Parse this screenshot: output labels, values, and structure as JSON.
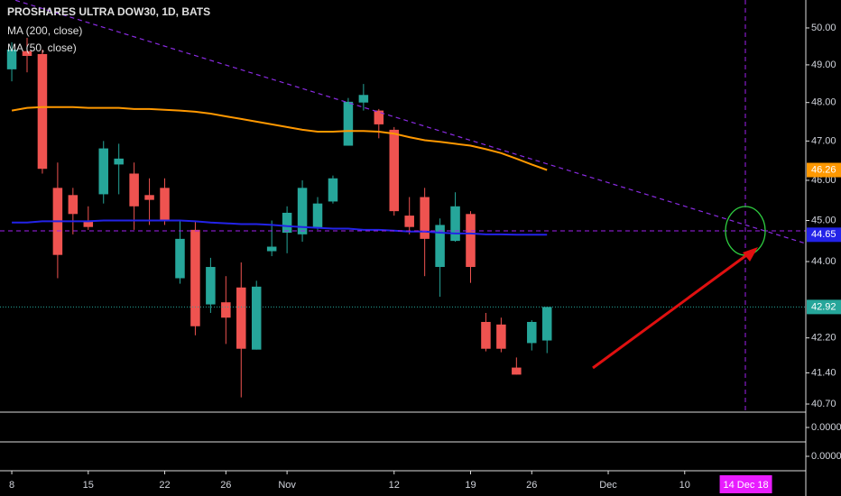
{
  "chart_data": {
    "type": "candlestick",
    "title": "PROSHARES ULTRA DOW30, 1D, BATS",
    "log_scale": true,
    "xlim": [
      -0.77,
      51.92
    ],
    "ylim": [
      40.52,
      50.77
    ],
    "yticks": [
      {
        "value": 50,
        "label": "50.00"
      },
      {
        "value": 49,
        "label": "49.00"
      },
      {
        "value": 48,
        "label": "48.00"
      },
      {
        "value": 47,
        "label": "47.00"
      },
      {
        "value": 46,
        "label": "46.00"
      },
      {
        "value": 45,
        "label": "45.00"
      },
      {
        "value": 44,
        "label": "44.00"
      },
      {
        "value": 42.2,
        "label": "42.20"
      },
      {
        "value": 41.4,
        "label": "41.40"
      },
      {
        "value": 40.7,
        "label": "40.70"
      }
    ],
    "xticks": [
      {
        "value": 0,
        "label": "8"
      },
      {
        "value": 5,
        "label": "15"
      },
      {
        "value": 10,
        "label": "22"
      },
      {
        "value": 14,
        "label": "26"
      },
      {
        "value": 18,
        "label": "Nov"
      },
      {
        "value": 25,
        "label": "12"
      },
      {
        "value": 30,
        "label": "19"
      },
      {
        "value": 34,
        "label": "26"
      },
      {
        "value": 39,
        "label": "Dec"
      },
      {
        "value": 44,
        "label": "10"
      }
    ],
    "up_color": "#26a69a",
    "down_color": "#ef5350",
    "candles": {
      "open": [
        48.88,
        49.37,
        49.29,
        45.81,
        45.63,
        45.0,
        45.65,
        46.4,
        46.17,
        45.63,
        45.81,
        43.6,
        44.77,
        42.98,
        43.03,
        43.38,
        41.93,
        44.25,
        44.7,
        44.66,
        44.82,
        45.47,
        46.88,
        48.0,
        47.79,
        47.29,
        45.12,
        45.58,
        43.87,
        44.5,
        45.16,
        42.57,
        42.51,
        41.52,
        42.08,
        42.14
      ],
      "high": [
        49.61,
        49.73,
        49.41,
        46.45,
        45.81,
        45.35,
        47.0,
        46.93,
        46.45,
        46.05,
        46.05,
        45.0,
        45.0,
        44.09,
        43.65,
        43.98,
        43.54,
        45.0,
        45.35,
        46.0,
        45.58,
        46.12,
        48.12,
        48.49,
        47.83,
        47.36,
        45.58,
        45.81,
        45.05,
        45.7,
        45.23,
        42.78,
        42.67,
        41.75,
        42.61,
        42.92
      ],
      "low": [
        48.56,
        48.8,
        46.17,
        43.6,
        44.66,
        44.77,
        45.42,
        45.65,
        44.77,
        44.89,
        44.89,
        43.47,
        42.26,
        42.78,
        42.06,
        40.85,
        41.93,
        44.13,
        44.2,
        44.48,
        44.77,
        45.42,
        46.88,
        47.79,
        47.07,
        45.12,
        44.66,
        43.65,
        43.16,
        44.48,
        43.49,
        41.89,
        41.87,
        41.36,
        41.91,
        41.85
      ],
      "close": [
        49.41,
        49.24,
        46.29,
        44.16,
        45.16,
        44.84,
        46.81,
        46.55,
        45.35,
        45.51,
        45.0,
        44.55,
        42.47,
        43.87,
        42.67,
        41.95,
        43.4,
        44.36,
        45.19,
        45.81,
        45.42,
        46.05,
        48.02,
        48.2,
        47.43,
        45.23,
        44.84,
        44.55,
        44.89,
        45.35,
        43.87,
        41.95,
        41.95,
        41.36,
        42.57,
        42.92
      ]
    },
    "series": [
      {
        "name": "MA (200, close)",
        "color": "#ff9800",
        "values": [
          47.79,
          47.86,
          47.88,
          47.88,
          47.88,
          47.86,
          47.86,
          47.86,
          47.83,
          47.83,
          47.81,
          47.79,
          47.76,
          47.71,
          47.64,
          47.57,
          47.5,
          47.43,
          47.36,
          47.29,
          47.24,
          47.24,
          47.26,
          47.26,
          47.24,
          47.19,
          47.1,
          47.02,
          46.98,
          46.93,
          46.88,
          46.79,
          46.69,
          46.55,
          46.4,
          46.26
        ]
      },
      {
        "name": "MA (50, close)",
        "color": "#2323e8",
        "values": [
          44.95,
          44.95,
          44.98,
          44.98,
          44.98,
          44.98,
          45.0,
          45.0,
          45.0,
          45.0,
          45.0,
          45.0,
          44.98,
          44.95,
          44.93,
          44.91,
          44.91,
          44.89,
          44.86,
          44.84,
          44.82,
          44.8,
          44.8,
          44.77,
          44.77,
          44.75,
          44.73,
          44.73,
          44.7,
          44.68,
          44.68,
          44.66,
          44.66,
          44.65,
          44.65,
          44.65
        ]
      }
    ],
    "crosshair": {
      "x": 48,
      "label": "14 Dec 18"
    },
    "lower_panes": [
      {
        "yticks": [
          {
            "value": 0,
            "label": "0.0000"
          }
        ]
      },
      {
        "yticks": [
          {
            "value": 0,
            "label": "0.0000"
          }
        ]
      }
    ]
  }
}
